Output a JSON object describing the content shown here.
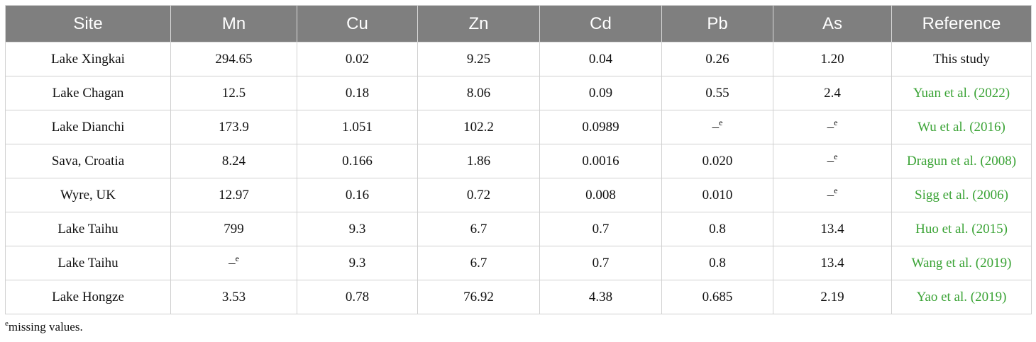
{
  "table": {
    "headers": [
      "Site",
      "Mn",
      "Cu",
      "Zn",
      "Cd",
      "Pb",
      "As",
      "Reference"
    ],
    "rows": [
      {
        "site": "Lake Xingkai",
        "mn": "294.65",
        "cu": "0.02",
        "zn": "9.25",
        "cd": "0.04",
        "pb": "0.26",
        "as": "1.20",
        "reference": "This study",
        "ref_is_link": false
      },
      {
        "site": "Lake Chagan",
        "mn": "12.5",
        "cu": "0.18",
        "zn": "8.06",
        "cd": "0.09",
        "pb": "0.55",
        "as": "2.4",
        "reference": "Yuan et al. (2022)",
        "ref_is_link": true
      },
      {
        "site": "Lake Dianchi",
        "mn": "173.9",
        "cu": "1.051",
        "zn": "102.2",
        "cd": "0.0989",
        "pb": "–e",
        "as": "–e",
        "reference": "Wu et al. (2016)",
        "ref_is_link": true
      },
      {
        "site": "Sava, Croatia",
        "mn": "8.24",
        "cu": "0.166",
        "zn": "1.86",
        "cd": "0.0016",
        "pb": "0.020",
        "as": "–e",
        "reference": "Dragun et al. (2008)",
        "ref_is_link": true
      },
      {
        "site": "Wyre, UK",
        "mn": "12.97",
        "cu": "0.16",
        "zn": "0.72",
        "cd": "0.008",
        "pb": "0.010",
        "as": "–e",
        "reference": "Sigg et al. (2006)",
        "ref_is_link": true
      },
      {
        "site": "Lake Taihu",
        "mn": "799",
        "cu": "9.3",
        "zn": "6.7",
        "cd": "0.7",
        "pb": "0.8",
        "as": "13.4",
        "reference": "Huo et al. (2015)",
        "ref_is_link": true
      },
      {
        "site": "Lake Taihu",
        "mn": "–e",
        "cu": "9.3",
        "zn": "6.7",
        "cd": "0.7",
        "pb": "0.8",
        "as": "13.4",
        "reference": "Wang et al. (2019)",
        "ref_is_link": true
      },
      {
        "site": "Lake Hongze",
        "mn": "3.53",
        "cu": "0.78",
        "zn": "76.92",
        "cd": "4.38",
        "pb": "0.685",
        "as": "2.19",
        "reference": "Yao et al. (2019)",
        "ref_is_link": true
      }
    ]
  },
  "footnote": {
    "marker": "e",
    "text": "missing values."
  },
  "colors": {
    "header_bg": "#7f7f7f",
    "header_text": "#ffffff",
    "reference_link": "#3aa335",
    "cell_border": "#d0d0d0"
  }
}
